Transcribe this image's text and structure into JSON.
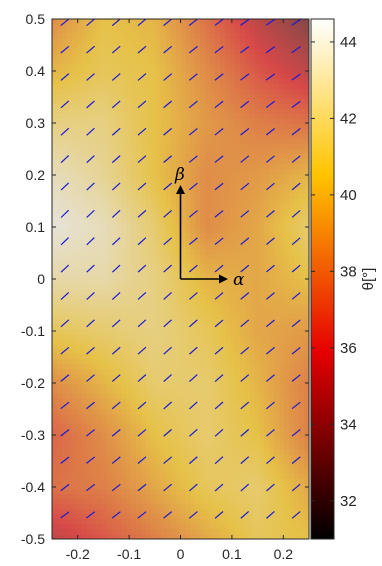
{
  "chart_data": {
    "type": "heatmap",
    "title": "",
    "xlabel": "",
    "ylabel": "",
    "xlim": [
      -0.25,
      0.25
    ],
    "ylim": [
      -0.5,
      0.5
    ],
    "x_ticks": [
      -0.2,
      -0.1,
      0,
      0.1,
      0.2
    ],
    "x_tick_labels": [
      "-0.2",
      "-0.1",
      "0",
      "0.1",
      "0.2"
    ],
    "y_ticks": [
      -0.5,
      -0.4,
      -0.3,
      -0.2,
      -0.1,
      0,
      0.1,
      0.2,
      0.3,
      0.4,
      0.5
    ],
    "y_tick_labels": [
      "-0.5",
      "-0.4",
      "-0.3",
      "-0.2",
      "-0.1",
      "0",
      "0.1",
      "0.2",
      "0.3",
      "0.4",
      "0.5"
    ],
    "colorbar": {
      "label": "θ[°]",
      "range": [
        31,
        44.6
      ],
      "ticks": [
        32,
        34,
        36,
        38,
        40,
        42,
        44
      ],
      "tick_labels": [
        "32",
        "34",
        "36",
        "38",
        "40",
        "42",
        "44"
      ],
      "colormap": "hot"
    },
    "field": {
      "x": [
        -0.25,
        -0.15,
        -0.05,
        0.05,
        0.15,
        0.25
      ],
      "y": [
        0.5,
        0.4,
        0.3,
        0.2,
        0.1,
        0,
        -0.1,
        -0.2,
        -0.3,
        -0.4,
        -0.5
      ],
      "theta_deg": [
        [
          38.5,
          40.5,
          40.0,
          37.5,
          35.0,
          33.0
        ],
        [
          40.0,
          41.0,
          40.5,
          38.5,
          36.5,
          35.0
        ],
        [
          42.0,
          42.0,
          40.5,
          39.0,
          38.0,
          37.5
        ],
        [
          43.5,
          42.5,
          40.5,
          38.5,
          39.0,
          40.0
        ],
        [
          44.2,
          43.5,
          41.5,
          38.5,
          39.5,
          41.5
        ],
        [
          43.0,
          43.0,
          42.0,
          40.0,
          39.5,
          40.5
        ],
        [
          41.0,
          41.5,
          42.0,
          41.0,
          39.5,
          39.0
        ],
        [
          38.5,
          40.0,
          41.5,
          41.5,
          40.0,
          38.0
        ],
        [
          37.0,
          38.5,
          40.5,
          41.5,
          40.5,
          38.0
        ],
        [
          37.5,
          38.0,
          39.5,
          41.0,
          41.5,
          39.5
        ],
        [
          35.0,
          36.5,
          38.0,
          39.5,
          41.0,
          40.5
        ]
      ]
    },
    "vectors": {
      "color": "#1a1ad6",
      "columns": 10,
      "rows": 19,
      "orientation": "theta"
    },
    "axes_arrows": [
      {
        "label": "α",
        "direction": "x"
      },
      {
        "label": "β",
        "direction": "y"
      }
    ]
  }
}
